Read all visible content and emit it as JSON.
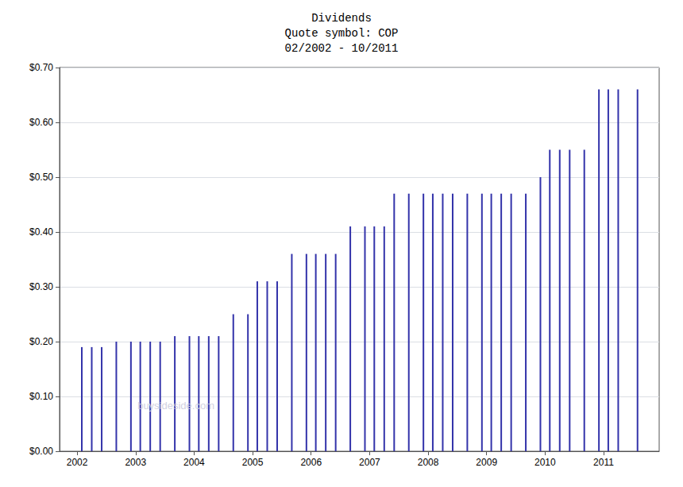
{
  "chart_data": {
    "type": "bar",
    "title": "Dividends\nQuote symbol: COP\n02/2002 - 10/2011",
    "x": [
      2002.08,
      2002.25,
      2002.42,
      2002.67,
      2002.92,
      2003.08,
      2003.25,
      2003.42,
      2003.67,
      2003.92,
      2004.08,
      2004.25,
      2004.42,
      2004.67,
      2004.92,
      2005.08,
      2005.25,
      2005.42,
      2005.67,
      2005.92,
      2006.08,
      2006.25,
      2006.42,
      2006.67,
      2006.92,
      2007.08,
      2007.25,
      2007.42,
      2007.67,
      2007.92,
      2008.08,
      2008.25,
      2008.42,
      2008.67,
      2008.92,
      2009.08,
      2009.25,
      2009.42,
      2009.67,
      2009.92,
      2010.08,
      2010.25,
      2010.42,
      2010.67,
      2010.92,
      2011.08,
      2011.25,
      2011.58
    ],
    "values": [
      0.19,
      0.19,
      0.19,
      0.2,
      0.2,
      0.2,
      0.2,
      0.2,
      0.21,
      0.21,
      0.21,
      0.21,
      0.21,
      0.25,
      0.25,
      0.31,
      0.31,
      0.31,
      0.36,
      0.36,
      0.36,
      0.36,
      0.36,
      0.41,
      0.41,
      0.41,
      0.41,
      0.47,
      0.47,
      0.47,
      0.47,
      0.47,
      0.47,
      0.47,
      0.47,
      0.47,
      0.47,
      0.47,
      0.47,
      0.5,
      0.55,
      0.55,
      0.55,
      0.55,
      0.66,
      0.66,
      0.66,
      0.66
    ],
    "color": "#3333aa",
    "xlim": [
      2001.7,
      2011.95
    ],
    "xticks": [
      2002,
      2003,
      2004,
      2005,
      2006,
      2007,
      2008,
      2009,
      2010,
      2011
    ],
    "ylim": [
      0.0,
      0.7
    ],
    "yticks": [
      {
        "value": 0.0,
        "label": "$0.00"
      },
      {
        "value": 0.1,
        "label": "$0.10"
      },
      {
        "value": 0.2,
        "label": "$0.20"
      },
      {
        "value": 0.3,
        "label": "$0.30"
      },
      {
        "value": 0.4,
        "label": "$0.40"
      },
      {
        "value": 0.5,
        "label": "$0.50"
      },
      {
        "value": 0.6,
        "label": "$0.60"
      },
      {
        "value": 0.7,
        "label": "$0.70"
      }
    ],
    "grid": true,
    "annotations": [
      {
        "text": "buysideside.com"
      }
    ]
  }
}
